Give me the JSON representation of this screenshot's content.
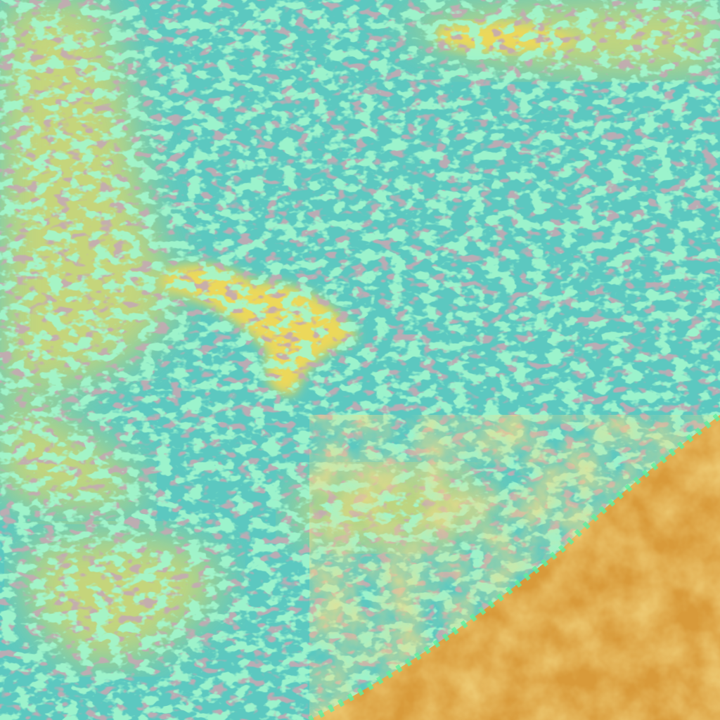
{
  "image": {
    "colors": {
      "ocean_clouds": "#5cc8c0",
      "cloud_highlight": "#5cf0a0",
      "haze_yellow": "#d8d870",
      "bright_yellow": "#ecd85a",
      "land_orange": "#d89a3a",
      "land_dark": "#c07a30",
      "cloud_shadow": "#8a6a70"
    }
  }
}
